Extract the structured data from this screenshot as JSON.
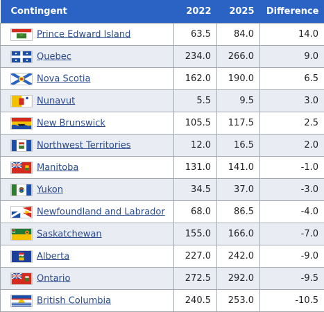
{
  "table": {
    "headers": {
      "name": "Contingent",
      "y2022": "2022",
      "y2025": "2025",
      "diff": "Difference"
    },
    "rows": [
      {
        "name": "Prince Edward Island",
        "flag": "pei-flag-icon",
        "y2022": "63.5",
        "y2025": "84.0",
        "diff": "14.0"
      },
      {
        "name": "Quebec",
        "flag": "quebec-flag-icon",
        "y2022": "234.0",
        "y2025": "266.0",
        "diff": "9.0"
      },
      {
        "name": "Nova Scotia",
        "flag": "nova-scotia-flag-icon",
        "y2022": "162.0",
        "y2025": "190.0",
        "diff": "6.5"
      },
      {
        "name": "Nunavut",
        "flag": "nunavut-flag-icon",
        "y2022": "5.5",
        "y2025": "9.5",
        "diff": "3.0"
      },
      {
        "name": "New Brunswick",
        "flag": "new-brunswick-flag-icon",
        "y2022": "105.5",
        "y2025": "117.5",
        "diff": "2.5"
      },
      {
        "name": "Northwest Territories",
        "flag": "nwt-flag-icon",
        "y2022": "12.0",
        "y2025": "16.5",
        "diff": "2.0"
      },
      {
        "name": "Manitoba",
        "flag": "manitoba-flag-icon",
        "y2022": "131.0",
        "y2025": "141.0",
        "diff": "-1.0"
      },
      {
        "name": "Yukon",
        "flag": "yukon-flag-icon",
        "y2022": "34.5",
        "y2025": "37.0",
        "diff": "-3.0"
      },
      {
        "name": "Newfoundland and Labrador",
        "flag": "newfoundland-flag-icon",
        "y2022": "68.0",
        "y2025": "86.5",
        "diff": "-4.0"
      },
      {
        "name": "Saskatchewan",
        "flag": "saskatchewan-flag-icon",
        "y2022": "155.0",
        "y2025": "166.0",
        "diff": "-7.0"
      },
      {
        "name": "Alberta",
        "flag": "alberta-flag-icon",
        "y2022": "227.0",
        "y2025": "242.0",
        "diff": "-9.0"
      },
      {
        "name": "Ontario",
        "flag": "ontario-flag-icon",
        "y2022": "272.5",
        "y2025": "292.0",
        "diff": "-9.5"
      },
      {
        "name": "British Columbia",
        "flag": "bc-flag-icon",
        "y2022": "240.5",
        "y2025": "253.0",
        "diff": "-10.5"
      }
    ]
  },
  "colors": {
    "header_bg": "#2a63c3",
    "alt_row_bg": "#eaecf3",
    "link": "#2a4b8d",
    "border": "#a2a9b1"
  }
}
